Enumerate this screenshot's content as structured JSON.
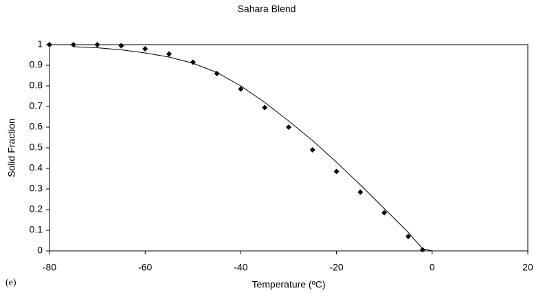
{
  "chart_data": {
    "type": "scatter",
    "title": "Sahara Blend",
    "x_label": "Temperature (ºC)",
    "y_label": "Solid Fraction",
    "panel_label": "(e)",
    "xlim": [
      -80,
      20
    ],
    "xticks": [
      -80,
      -60,
      -40,
      -20,
      0,
      20
    ],
    "ylim": [
      0,
      1
    ],
    "yticks": [
      0,
      0.1,
      0.2,
      0.3,
      0.4,
      0.5,
      0.6,
      0.7,
      0.8,
      0.9,
      1
    ],
    "points": {
      "color": "#000000",
      "x": [
        -80,
        -75,
        -70,
        -65,
        -60,
        -55,
        -50,
        -45,
        -40,
        -35,
        -30,
        -25,
        -20,
        -15,
        -10,
        -5,
        -2
      ],
      "y": [
        1,
        1,
        1,
        0.995,
        0.98,
        0.955,
        0.915,
        0.86,
        0.785,
        0.695,
        0.6,
        0.49,
        0.385,
        0.285,
        0.185,
        0.07,
        0.005
      ]
    },
    "fit": {
      "color": "#000000",
      "x": [
        -75,
        -70,
        -65,
        -60,
        -55,
        -50,
        -45,
        -40,
        -35,
        -30,
        -25,
        -20,
        -15,
        -10,
        -5,
        -2,
        0
      ],
      "y": [
        0.99,
        0.985,
        0.975,
        0.96,
        0.94,
        0.91,
        0.865,
        0.8,
        0.72,
        0.63,
        0.535,
        0.43,
        0.32,
        0.205,
        0.09,
        0.01,
        0
      ]
    }
  }
}
